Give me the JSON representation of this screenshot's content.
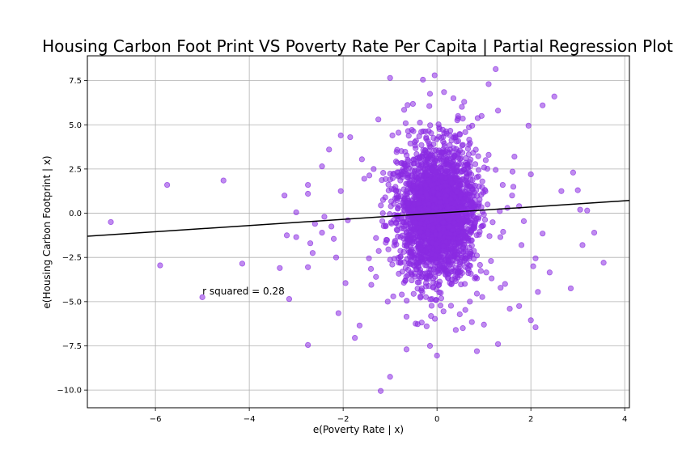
{
  "chart_data": {
    "type": "scatter",
    "title": "Housing Carbon Foot Print VS Poverty Rate Per Capita | Partial Regression Plot",
    "xlabel": "e(Poverty Rate | x)",
    "ylabel": "e(Housing Carbon Footprint | x)",
    "xlim": [
      -7.45,
      4.1
    ],
    "ylim": [
      -11.0,
      8.9
    ],
    "x_ticks": [
      -6,
      -4,
      -2,
      0,
      2,
      4
    ],
    "y_ticks": [
      -10.0,
      -7.5,
      -5.0,
      -2.5,
      0.0,
      2.5,
      5.0,
      7.5
    ],
    "grid": true,
    "annotation": {
      "text": "r squared = 0.28",
      "x": -5.0,
      "y": -4.6
    },
    "point_color": "#8a2be2",
    "line_color": "#000000",
    "regression_line": {
      "x": [
        -7.45,
        4.1
      ],
      "y": [
        -1.3,
        0.72
      ]
    },
    "series": [
      {
        "points": [
          [
            -6.95,
            -0.5
          ],
          [
            -5.9,
            -2.95
          ],
          [
            -5.75,
            1.6
          ],
          [
            -4.55,
            1.85
          ],
          [
            -4.15,
            -2.85
          ],
          [
            -5.0,
            -4.75
          ],
          [
            -3.35,
            -3.1
          ],
          [
            -3.25,
            1.0
          ],
          [
            -3.2,
            -1.25
          ],
          [
            -3.15,
            -4.85
          ],
          [
            -3.0,
            0.05
          ],
          [
            -3.0,
            -1.35
          ],
          [
            -2.75,
            1.6
          ],
          [
            -2.75,
            1.1
          ],
          [
            -2.75,
            -3.05
          ],
          [
            -2.75,
            -7.45
          ],
          [
            -2.7,
            -1.7
          ],
          [
            -2.65,
            -2.25
          ],
          [
            -2.6,
            -0.6
          ],
          [
            -2.45,
            -1.1
          ],
          [
            -2.45,
            2.65
          ],
          [
            -2.4,
            -0.2
          ],
          [
            -2.3,
            3.6
          ],
          [
            -2.25,
            -0.75
          ],
          [
            -2.2,
            -1.45
          ],
          [
            -2.15,
            -2.5
          ],
          [
            -2.1,
            -5.65
          ],
          [
            -2.05,
            1.25
          ],
          [
            -2.05,
            4.4
          ],
          [
            -1.95,
            -3.95
          ],
          [
            -1.9,
            -0.4
          ],
          [
            -1.85,
            4.3
          ],
          [
            -1.75,
            -7.05
          ],
          [
            -1.65,
            -6.35
          ],
          [
            -1.6,
            3.05
          ],
          [
            -1.4,
            -4.05
          ],
          [
            -1.25,
            5.3
          ],
          [
            -1.2,
            -10.05
          ],
          [
            -1.0,
            -9.25
          ],
          [
            -1.0,
            7.65
          ],
          [
            -0.65,
            -7.7
          ],
          [
            -0.3,
            7.55
          ],
          [
            -0.15,
            6.75
          ],
          [
            -0.15,
            -7.5
          ],
          [
            -0.05,
            7.8
          ],
          [
            0.0,
            -8.05
          ],
          [
            0.15,
            6.85
          ],
          [
            0.35,
            6.5
          ],
          [
            0.4,
            -6.6
          ],
          [
            0.55,
            -6.5
          ],
          [
            0.85,
            -7.8
          ],
          [
            1.0,
            -6.3
          ],
          [
            1.1,
            7.3
          ],
          [
            1.25,
            8.15
          ],
          [
            1.3,
            5.8
          ],
          [
            1.3,
            -7.4
          ],
          [
            1.55,
            -5.4
          ],
          [
            1.65,
            3.2
          ],
          [
            1.75,
            -5.25
          ],
          [
            1.95,
            4.95
          ],
          [
            2.0,
            -6.05
          ],
          [
            2.05,
            -3.0
          ],
          [
            2.1,
            -6.45
          ],
          [
            2.1,
            -2.55
          ],
          [
            2.15,
            -4.45
          ],
          [
            2.25,
            6.1
          ],
          [
            2.25,
            -1.15
          ],
          [
            2.4,
            -3.35
          ],
          [
            2.5,
            6.6
          ],
          [
            2.65,
            1.25
          ],
          [
            2.85,
            -4.25
          ],
          [
            2.9,
            2.3
          ],
          [
            3.0,
            1.3
          ],
          [
            3.05,
            0.2
          ],
          [
            3.1,
            -1.8
          ],
          [
            3.2,
            0.15
          ],
          [
            3.35,
            -1.1
          ],
          [
            3.55,
            -2.8
          ],
          [
            2.0,
            2.2
          ],
          [
            1.8,
            -1.8
          ],
          [
            1.6,
            1.0
          ],
          [
            1.45,
            -4.0
          ],
          [
            1.75,
            0.4
          ],
          [
            1.85,
            -0.45
          ],
          [
            -1.55,
            1.95
          ],
          [
            -1.45,
            -2.55
          ],
          [
            -1.35,
            2.5
          ],
          [
            -1.3,
            -3.6
          ],
          [
            -1.15,
            0.75
          ],
          [
            -1.05,
            -5.0
          ],
          [
            -0.95,
            4.4
          ],
          [
            -0.9,
            -1.65
          ],
          [
            -0.85,
            2.85
          ],
          [
            -0.75,
            -4.6
          ],
          [
            -0.7,
            5.85
          ],
          [
            -0.65,
            -5.85
          ],
          [
            0.55,
            5.35
          ],
          [
            0.7,
            -5.0
          ],
          [
            0.75,
            4.95
          ],
          [
            0.85,
            -4.55
          ],
          [
            0.95,
            5.5
          ],
          [
            1.05,
            -3.35
          ],
          [
            1.1,
            3.3
          ],
          [
            1.15,
            -2.7
          ],
          [
            1.25,
            2.45
          ],
          [
            1.35,
            -1.35
          ],
          [
            1.4,
            1.6
          ],
          [
            1.5,
            0.3
          ]
        ]
      }
    ]
  }
}
